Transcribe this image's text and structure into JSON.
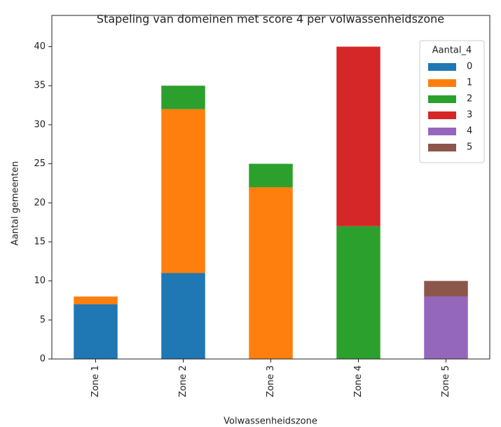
{
  "chart_data": {
    "type": "stacked_bar",
    "title": "Stapeling van domeinen met score 4 per volwassenheidszone",
    "x_label": "Volwassenheidszone",
    "y_label": "Aantal gemeenten",
    "categories": [
      "Zone 1",
      "Zone 2",
      "Zone 3",
      "Zone 4",
      "Zone 5"
    ],
    "legend_title": "Aantal_4",
    "legend_position": "upper right",
    "series": [
      {
        "name": "0",
        "color": "#1f77b4",
        "values": [
          7,
          11,
          0,
          0,
          0
        ]
      },
      {
        "name": "1",
        "color": "#ff7f0e",
        "values": [
          1,
          21,
          22,
          0,
          0
        ]
      },
      {
        "name": "2",
        "color": "#2ca02c",
        "values": [
          0,
          3,
          3,
          17,
          0
        ]
      },
      {
        "name": "3",
        "color": "#d62728",
        "values": [
          0,
          0,
          0,
          23,
          0
        ]
      },
      {
        "name": "4",
        "color": "#9467bd",
        "values": [
          0,
          0,
          0,
          0,
          8
        ]
      },
      {
        "name": "5",
        "color": "#8c564b",
        "values": [
          0,
          0,
          0,
          0,
          2
        ]
      }
    ],
    "ylim": [
      0,
      44
    ],
    "yticks": [
      0,
      5,
      10,
      15,
      20,
      25,
      30,
      35,
      40
    ],
    "grid": false
  }
}
